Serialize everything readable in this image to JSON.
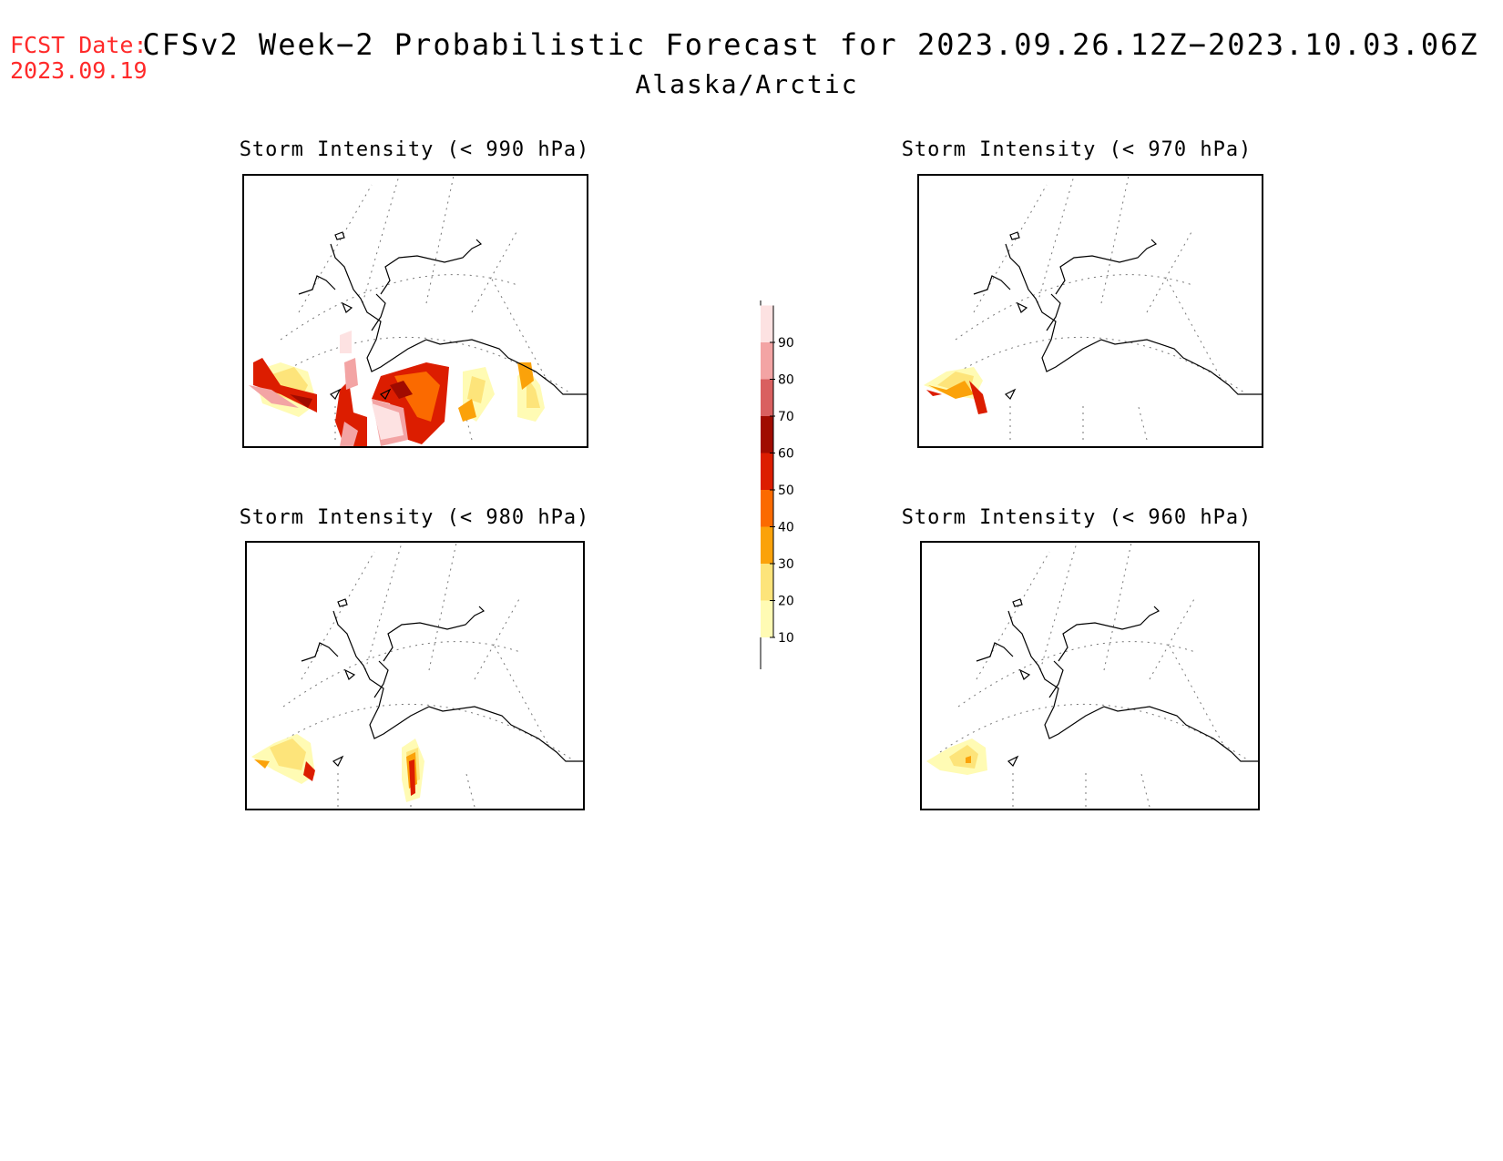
{
  "fcst_label": "FCST Date:",
  "fcst_date": "2023.09.19",
  "title": "CFSv2 Week−2 Probabilistic Forecast for 2023.09.26.12Z−2023.10.03.06Z",
  "subtitle": "Alaska/Arctic",
  "panels": [
    {
      "title": "Storm Intensity (< 990 hPa)"
    },
    {
      "title": "Storm Intensity (< 970 hPa)"
    },
    {
      "title": "Storm Intensity (< 980 hPa)"
    },
    {
      "title": "Storm Intensity (< 960 hPa)"
    }
  ],
  "legend": {
    "levels": [
      "10",
      "20",
      "30",
      "40",
      "50",
      "60",
      "70",
      "80",
      "90"
    ],
    "colors": [
      "#fffbb4",
      "#fde47a",
      "#fba20a",
      "#fb6a00",
      "#dc1d00",
      "#a00b00",
      "#d96060",
      "#f3a4a4",
      "#fde2e2"
    ]
  }
}
